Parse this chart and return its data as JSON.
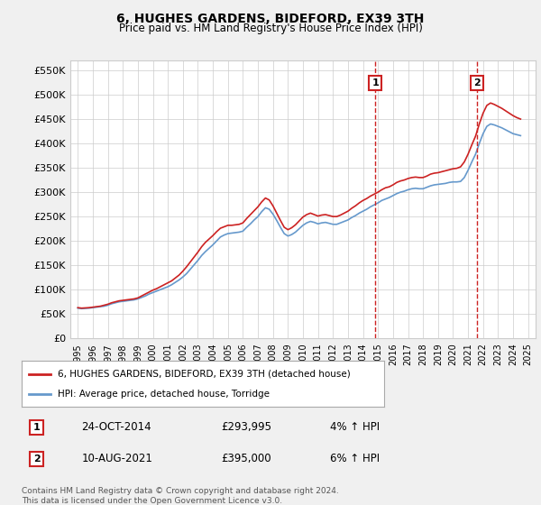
{
  "title": "6, HUGHES GARDENS, BIDEFORD, EX39 3TH",
  "subtitle": "Price paid vs. HM Land Registry's House Price Index (HPI)",
  "ylabel_ticks": [
    "£0",
    "£50K",
    "£100K",
    "£150K",
    "£200K",
    "£250K",
    "£300K",
    "£350K",
    "£400K",
    "£450K",
    "£500K",
    "£550K"
  ],
  "ytick_vals": [
    0,
    50000,
    100000,
    150000,
    200000,
    250000,
    300000,
    350000,
    400000,
    450000,
    500000,
    550000
  ],
  "ylim": [
    0,
    570000
  ],
  "xlim_start": 1994.5,
  "xlim_end": 2025.5,
  "xtick_years": [
    1995,
    1996,
    1997,
    1998,
    1999,
    2000,
    2001,
    2002,
    2003,
    2004,
    2005,
    2006,
    2007,
    2008,
    2009,
    2010,
    2011,
    2012,
    2013,
    2014,
    2015,
    2016,
    2017,
    2018,
    2019,
    2020,
    2021,
    2022,
    2023,
    2024,
    2025
  ],
  "hpi_color": "#6699cc",
  "price_color": "#cc2222",
  "sale1_x": 2014.82,
  "sale1_y": 293995,
  "sale1_label": "1",
  "sale1_date": "24-OCT-2014",
  "sale1_price": "£293,995",
  "sale1_hpi": "4% ↑ HPI",
  "sale2_x": 2021.6,
  "sale2_y": 395000,
  "sale2_label": "2",
  "sale2_date": "10-AUG-2021",
  "sale2_price": "£395,000",
  "sale2_hpi": "6% ↑ HPI",
  "legend_line1": "6, HUGHES GARDENS, BIDEFORD, EX39 3TH (detached house)",
  "legend_line2": "HPI: Average price, detached house, Torridge",
  "footnote": "Contains HM Land Registry data © Crown copyright and database right 2024.\nThis data is licensed under the Open Government Licence v3.0.",
  "bg_color": "#f0f0f0",
  "plot_bg_color": "#ffffff",
  "hpi_data_x": [
    1995.0,
    1995.25,
    1995.5,
    1995.75,
    1996.0,
    1996.25,
    1996.5,
    1996.75,
    1997.0,
    1997.25,
    1997.5,
    1997.75,
    1998.0,
    1998.25,
    1998.5,
    1998.75,
    1999.0,
    1999.25,
    1999.5,
    1999.75,
    2000.0,
    2000.25,
    2000.5,
    2000.75,
    2001.0,
    2001.25,
    2001.5,
    2001.75,
    2002.0,
    2002.25,
    2002.5,
    2002.75,
    2003.0,
    2003.25,
    2003.5,
    2003.75,
    2004.0,
    2004.25,
    2004.5,
    2004.75,
    2005.0,
    2005.25,
    2005.5,
    2005.75,
    2006.0,
    2006.25,
    2006.5,
    2006.75,
    2007.0,
    2007.25,
    2007.5,
    2007.75,
    2008.0,
    2008.25,
    2008.5,
    2008.75,
    2009.0,
    2009.25,
    2009.5,
    2009.75,
    2010.0,
    2010.25,
    2010.5,
    2010.75,
    2011.0,
    2011.25,
    2011.5,
    2011.75,
    2012.0,
    2012.25,
    2012.5,
    2012.75,
    2013.0,
    2013.25,
    2013.5,
    2013.75,
    2014.0,
    2014.25,
    2014.5,
    2014.75,
    2015.0,
    2015.25,
    2015.5,
    2015.75,
    2016.0,
    2016.25,
    2016.5,
    2016.75,
    2017.0,
    2017.25,
    2017.5,
    2017.75,
    2018.0,
    2018.25,
    2018.5,
    2018.75,
    2019.0,
    2019.25,
    2019.5,
    2019.75,
    2020.0,
    2020.25,
    2020.5,
    2020.75,
    2021.0,
    2021.25,
    2021.5,
    2021.75,
    2022.0,
    2022.25,
    2022.5,
    2022.75,
    2023.0,
    2023.25,
    2023.5,
    2023.75,
    2024.0,
    2024.25,
    2024.5
  ],
  "hpi_data_y": [
    62000,
    61000,
    61500,
    62000,
    63000,
    64000,
    65000,
    66000,
    68000,
    71000,
    73000,
    75000,
    76000,
    77000,
    78000,
    79000,
    81000,
    84000,
    87000,
    91000,
    94000,
    97000,
    100000,
    103000,
    106000,
    110000,
    115000,
    120000,
    126000,
    133000,
    142000,
    151000,
    160000,
    170000,
    178000,
    185000,
    192000,
    200000,
    208000,
    212000,
    215000,
    216000,
    217000,
    218000,
    220000,
    228000,
    235000,
    243000,
    250000,
    260000,
    268000,
    265000,
    255000,
    242000,
    228000,
    215000,
    210000,
    213000,
    218000,
    225000,
    232000,
    237000,
    240000,
    238000,
    235000,
    237000,
    238000,
    236000,
    234000,
    234000,
    237000,
    240000,
    243000,
    248000,
    252000,
    257000,
    261000,
    265000,
    270000,
    274000,
    278000,
    283000,
    286000,
    289000,
    293000,
    297000,
    300000,
    302000,
    305000,
    307000,
    308000,
    307000,
    307000,
    310000,
    313000,
    315000,
    316000,
    317000,
    318000,
    320000,
    321000,
    321000,
    322000,
    330000,
    345000,
    362000,
    378000,
    400000,
    420000,
    435000,
    440000,
    438000,
    435000,
    432000,
    428000,
    424000,
    420000,
    418000,
    416000
  ],
  "price_data_x": [
    1995.0,
    1995.25,
    1995.5,
    1995.75,
    1996.0,
    1996.25,
    1996.5,
    1996.75,
    1997.0,
    1997.25,
    1997.5,
    1997.75,
    1998.0,
    1998.25,
    1998.5,
    1998.75,
    1999.0,
    1999.25,
    1999.5,
    1999.75,
    2000.0,
    2000.25,
    2000.5,
    2000.75,
    2001.0,
    2001.25,
    2001.5,
    2001.75,
    2002.0,
    2002.25,
    2002.5,
    2002.75,
    2003.0,
    2003.25,
    2003.5,
    2003.75,
    2004.0,
    2004.25,
    2004.5,
    2004.75,
    2005.0,
    2005.25,
    2005.5,
    2005.75,
    2006.0,
    2006.25,
    2006.5,
    2006.75,
    2007.0,
    2007.25,
    2007.5,
    2007.75,
    2008.0,
    2008.25,
    2008.5,
    2008.75,
    2009.0,
    2009.25,
    2009.5,
    2009.75,
    2010.0,
    2010.25,
    2010.5,
    2010.75,
    2011.0,
    2011.25,
    2011.5,
    2011.75,
    2012.0,
    2012.25,
    2012.5,
    2012.75,
    2013.0,
    2013.25,
    2013.5,
    2013.75,
    2014.0,
    2014.25,
    2014.5,
    2014.75,
    2015.0,
    2015.25,
    2015.5,
    2015.75,
    2016.0,
    2016.25,
    2016.5,
    2016.75,
    2017.0,
    2017.25,
    2017.5,
    2017.75,
    2018.0,
    2018.25,
    2018.5,
    2018.75,
    2019.0,
    2019.25,
    2019.5,
    2019.75,
    2020.0,
    2020.25,
    2020.5,
    2020.75,
    2021.0,
    2021.25,
    2021.5,
    2021.75,
    2022.0,
    2022.25,
    2022.5,
    2022.75,
    2023.0,
    2023.25,
    2023.5,
    2023.75,
    2024.0,
    2024.25,
    2024.5
  ],
  "price_data_y": [
    63000,
    62000,
    62500,
    63000,
    64000,
    65000,
    66000,
    68000,
    70000,
    73000,
    75000,
    77000,
    78000,
    79000,
    80000,
    81000,
    83000,
    87000,
    91000,
    95000,
    99000,
    102000,
    106000,
    110000,
    114000,
    118000,
    124000,
    130000,
    138000,
    147000,
    157000,
    167000,
    177000,
    188000,
    197000,
    204000,
    211000,
    219000,
    226000,
    229000,
    232000,
    232000,
    233000,
    234000,
    237000,
    246000,
    254000,
    262000,
    270000,
    280000,
    288000,
    284000,
    272000,
    257000,
    242000,
    228000,
    223000,
    227000,
    233000,
    241000,
    249000,
    254000,
    257000,
    254000,
    251000,
    253000,
    254000,
    252000,
    250000,
    250000,
    253000,
    257000,
    261000,
    267000,
    272000,
    278000,
    283000,
    287000,
    292000,
    296000,
    300000,
    305000,
    309000,
    311000,
    315000,
    320000,
    323000,
    325000,
    328000,
    330000,
    331000,
    330000,
    330000,
    333000,
    337000,
    339000,
    340000,
    342000,
    344000,
    346000,
    348000,
    349000,
    352000,
    362000,
    378000,
    397000,
    415000,
    440000,
    462000,
    478000,
    483000,
    480000,
    476000,
    472000,
    467000,
    462000,
    457000,
    453000,
    450000
  ]
}
